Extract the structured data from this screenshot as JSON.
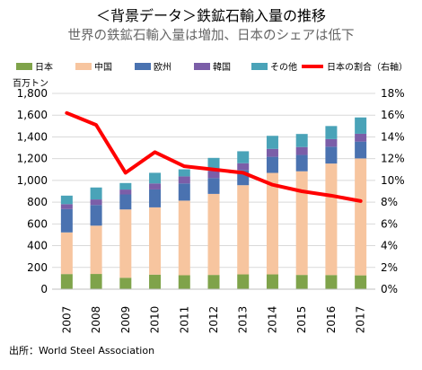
{
  "title": "＜背景データ＞鉄鉱石輸入量の推移",
  "subtitle": "世界の鉄鉱石輸入量は増加、日本のシェアは低下",
  "source": "出所：World Steel Association",
  "colors": {
    "japan": "#7fa34a",
    "china": "#f7c59f",
    "europe": "#4a72b0",
    "korea": "#7b5ea8",
    "other": "#4aa3b8",
    "share_line": "#ff0000"
  },
  "chart_data": {
    "type": "bar",
    "stacked": true,
    "title": "＜背景データ＞鉄鉱石輸入量の推移",
    "subtitle": "世界の鉄鉱石輸入量は増加、日本のシェアは低下",
    "ylabel_left": "百万トン",
    "ylabel_right": "",
    "legend_position": "top",
    "categories": [
      "2007",
      "2008",
      "2009",
      "2010",
      "2011",
      "2012",
      "2013",
      "2014",
      "2015",
      "2016",
      "2017"
    ],
    "ylim_left": [
      0,
      1800
    ],
    "yticks_left": [
      "0",
      "200",
      "400",
      "600",
      "800",
      "1,000",
      "1,200",
      "1,400",
      "1,600",
      "1,800"
    ],
    "ylim_right": [
      0,
      18
    ],
    "yticks_right": [
      "0%",
      "2%",
      "4%",
      "6%",
      "8%",
      "10%",
      "12%",
      "14%",
      "16%",
      "18%"
    ],
    "series": [
      {
        "name": "日本",
        "color_key": "japan",
        "values": [
          139,
          140,
          105,
          134,
          128,
          131,
          136,
          136,
          131,
          130,
          127
        ]
      },
      {
        "name": "中国",
        "color_key": "china",
        "values": [
          383,
          444,
          628,
          618,
          686,
          745,
          820,
          933,
          953,
          1025,
          1075
        ]
      },
      {
        "name": "欧州",
        "color_key": "europe",
        "values": [
          215,
          190,
          138,
          165,
          158,
          145,
          140,
          148,
          150,
          155,
          155
        ]
      },
      {
        "name": "韓国",
        "color_key": "korea",
        "values": [
          45,
          51,
          45,
          55,
          65,
          66,
          62,
          73,
          73,
          70,
          72
        ]
      },
      {
        "name": "その他",
        "color_key": "other",
        "values": [
          78,
          110,
          60,
          98,
          65,
          120,
          110,
          120,
          120,
          120,
          150
        ]
      }
    ],
    "line_series": {
      "name": "日本の割合（右軸）",
      "axis": "right",
      "unit": "%",
      "values": [
        16.2,
        15.1,
        10.7,
        12.6,
        11.3,
        11.0,
        10.7,
        9.6,
        9.0,
        8.6,
        8.1
      ]
    }
  }
}
